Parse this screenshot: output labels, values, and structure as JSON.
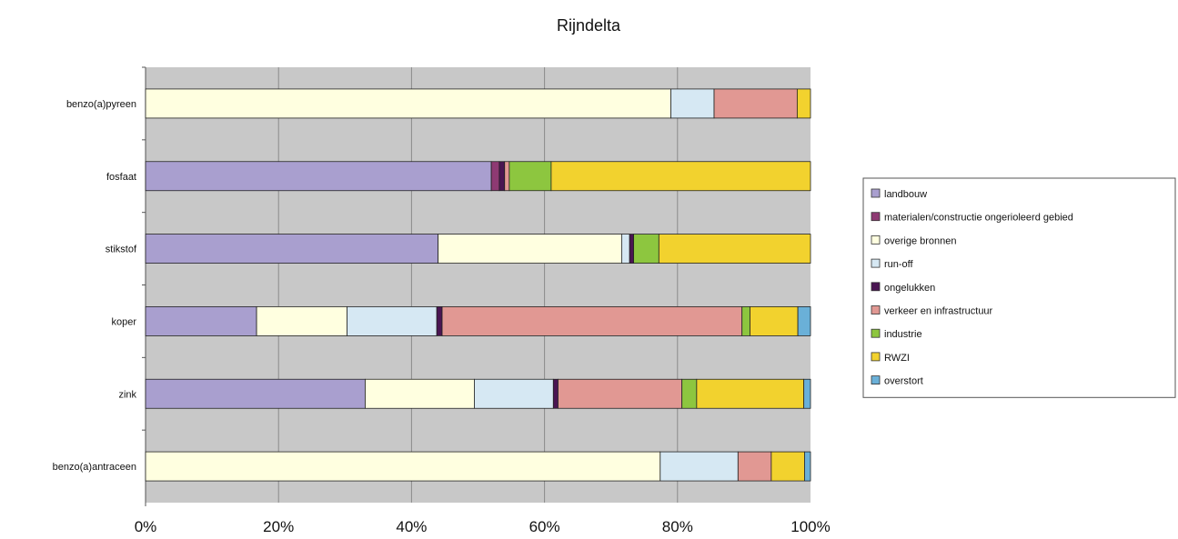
{
  "chart_data": {
    "type": "bar",
    "orientation": "horizontal",
    "stacked": "percent",
    "title": "Rijndelta",
    "xlabel": "",
    "ylabel": "",
    "xlim": [
      0,
      100
    ],
    "grid": true,
    "legend_position": "right",
    "x_ticks": [
      "0%",
      "20%",
      "40%",
      "60%",
      "80%",
      "100%"
    ],
    "categories": [
      "benzo(a)pyreen",
      "fosfaat",
      "stikstof",
      "koper",
      "zink",
      "benzo(a)antraceen"
    ],
    "series": [
      {
        "name": "landbouw",
        "color": "#a99fcf",
        "values": [
          0,
          52,
          44,
          16.7,
          32.8,
          0
        ]
      },
      {
        "name": "materialen/constructie ongerioleerd gebied",
        "color": "#8e3a73",
        "values": [
          0,
          1.2,
          0,
          0,
          0,
          0
        ]
      },
      {
        "name": "overige bronnen",
        "color": "#ffffe0",
        "values": [
          79,
          0,
          27.6,
          13.6,
          16.3,
          77.4
        ]
      },
      {
        "name": "run-off",
        "color": "#d6e8f3",
        "values": [
          6.5,
          0,
          1.2,
          13.5,
          11.8,
          11.7
        ]
      },
      {
        "name": "ongelukken",
        "color": "#4a1552",
        "values": [
          0,
          0.8,
          0.6,
          0.8,
          0.7,
          0
        ]
      },
      {
        "name": "verkeer en infrastructuur",
        "color": "#e19893",
        "values": [
          12.5,
          0.7,
          0,
          45.1,
          18.5,
          5
        ]
      },
      {
        "name": "industrie",
        "color": "#8dc63f",
        "values": [
          0,
          6.3,
          3.8,
          1.2,
          2.2,
          0
        ]
      },
      {
        "name": "RWZI",
        "color": "#f2d22e",
        "values": [
          2,
          39,
          22.8,
          7.2,
          16,
          5
        ]
      },
      {
        "name": "overstort",
        "color": "#6ab0d8",
        "values": [
          0,
          0,
          0,
          1.9,
          1,
          0.9
        ]
      }
    ]
  }
}
